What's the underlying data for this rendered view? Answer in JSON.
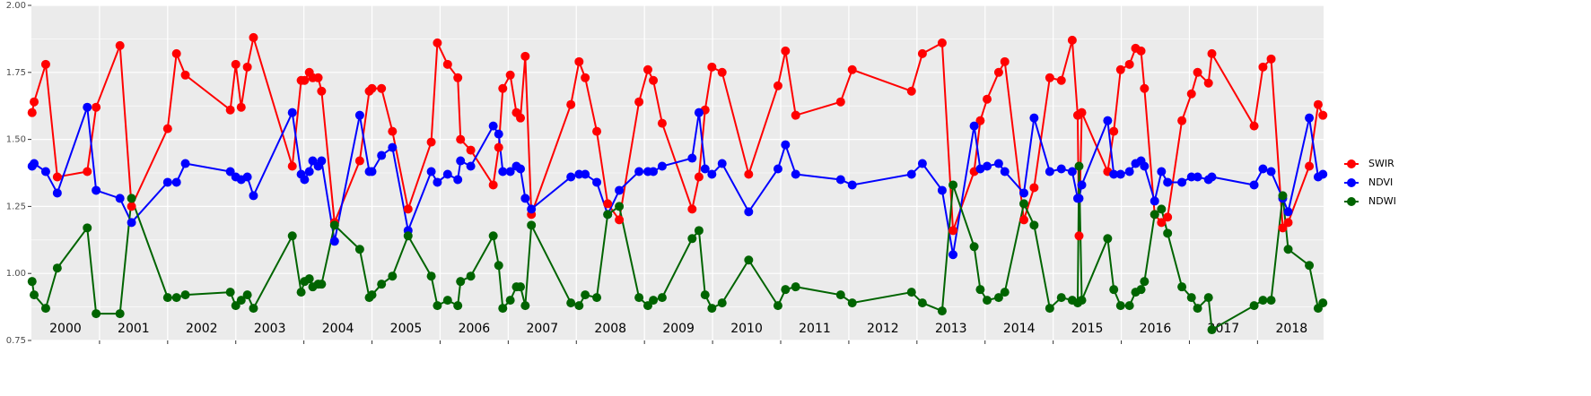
{
  "chart_data": {
    "type": "line",
    "x": [
      2000.01,
      2000.04,
      2000.21,
      2000.38,
      2000.82,
      2000.95,
      2001.3,
      2001.47,
      2002.0,
      2002.13,
      2002.26,
      2002.92,
      2003.0,
      2003.08,
      2003.17,
      2003.26,
      2003.83,
      2003.96,
      2004.01,
      2004.08,
      2004.13,
      2004.21,
      2004.26,
      2004.45,
      2004.82,
      2004.96,
      2005.0,
      2005.14,
      2005.3,
      2005.53,
      2005.87,
      2005.96,
      2006.11,
      2006.26,
      2006.3,
      2006.45,
      2006.78,
      2006.86,
      2006.92,
      2007.03,
      2007.12,
      2007.18,
      2007.25,
      2007.34,
      2007.92,
      2008.04,
      2008.13,
      2008.3,
      2008.46,
      2008.63,
      2008.92,
      2009.05,
      2009.13,
      2009.26,
      2009.7,
      2009.8,
      2009.89,
      2009.99,
      2010.14,
      2010.53,
      2010.96,
      2011.07,
      2011.22,
      2011.88,
      2012.05,
      2012.92,
      2013.08,
      2013.37,
      2013.53,
      2013.84,
      2013.93,
      2014.03,
      2014.2,
      2014.29,
      2014.57,
      2014.72,
      2014.95,
      2015.12,
      2015.28,
      2015.36,
      2015.38,
      2015.42,
      2015.8,
      2015.89,
      2015.99,
      2016.12,
      2016.21,
      2016.29,
      2016.34,
      2016.49,
      2016.59,
      2016.68,
      2016.89,
      2017.03,
      2017.12,
      2017.28,
      2017.33,
      2017.95,
      2018.08,
      2018.2,
      2018.37,
      2018.45,
      2018.76,
      2018.89,
      2018.96
    ],
    "series": [
      {
        "name": "SWIR",
        "color": "#ff0000",
        "values": [
          1.6,
          1.64,
          1.78,
          1.36,
          1.38,
          1.62,
          1.85,
          1.25,
          1.54,
          1.82,
          1.74,
          1.61,
          1.78,
          1.62,
          1.77,
          1.88,
          1.4,
          1.72,
          1.72,
          1.75,
          1.73,
          1.73,
          1.68,
          1.19,
          1.42,
          1.68,
          1.69,
          1.69,
          1.53,
          1.24,
          1.49,
          1.86,
          1.78,
          1.73,
          1.5,
          1.46,
          1.33,
          1.47,
          1.69,
          1.74,
          1.6,
          1.58,
          1.81,
          1.22,
          1.63,
          1.79,
          1.73,
          1.53,
          1.26,
          1.2,
          1.64,
          1.76,
          1.72,
          1.56,
          1.24,
          1.36,
          1.61,
          1.77,
          1.75,
          1.37,
          1.7,
          1.83,
          1.59,
          1.64,
          1.76,
          1.68,
          1.82,
          1.86,
          1.16,
          1.38,
          1.57,
          1.65,
          1.75,
          1.79,
          1.2,
          1.32,
          1.73,
          1.72,
          1.87,
          1.59,
          1.14,
          1.6,
          1.38,
          1.53,
          1.76,
          1.78,
          1.84,
          1.83,
          1.69,
          1.22,
          1.19,
          1.21,
          1.57,
          1.67,
          1.75,
          1.71,
          1.82,
          1.55,
          1.77,
          1.8,
          1.17,
          1.19,
          1.4,
          1.63,
          1.59
        ]
      },
      {
        "name": "NDVI",
        "color": "#0000ff",
        "values": [
          1.4,
          1.41,
          1.38,
          1.3,
          1.62,
          1.31,
          1.28,
          1.19,
          1.34,
          1.34,
          1.41,
          1.38,
          1.36,
          1.35,
          1.36,
          1.29,
          1.6,
          1.37,
          1.35,
          1.38,
          1.42,
          1.4,
          1.42,
          1.12,
          1.59,
          1.38,
          1.38,
          1.44,
          1.47,
          1.16,
          1.38,
          1.34,
          1.37,
          1.35,
          1.42,
          1.4,
          1.55,
          1.52,
          1.38,
          1.38,
          1.4,
          1.39,
          1.28,
          1.24,
          1.36,
          1.37,
          1.37,
          1.34,
          1.22,
          1.31,
          1.38,
          1.38,
          1.38,
          1.4,
          1.43,
          1.6,
          1.39,
          1.37,
          1.41,
          1.23,
          1.39,
          1.48,
          1.37,
          1.35,
          1.33,
          1.37,
          1.41,
          1.31,
          1.07,
          1.55,
          1.39,
          1.4,
          1.41,
          1.38,
          1.3,
          1.58,
          1.38,
          1.39,
          1.38,
          1.28,
          1.28,
          1.33,
          1.57,
          1.37,
          1.37,
          1.38,
          1.41,
          1.42,
          1.4,
          1.27,
          1.38,
          1.34,
          1.34,
          1.36,
          1.36,
          1.35,
          1.36,
          1.33,
          1.39,
          1.38,
          1.28,
          1.23,
          1.58,
          1.36,
          1.37
        ]
      },
      {
        "name": "NDWI",
        "color": "#006400",
        "values": [
          0.97,
          0.92,
          0.87,
          1.02,
          1.17,
          0.85,
          0.85,
          1.28,
          0.91,
          0.91,
          0.92,
          0.93,
          0.88,
          0.9,
          0.92,
          0.87,
          1.14,
          0.93,
          0.97,
          0.98,
          0.95,
          0.96,
          0.96,
          1.18,
          1.09,
          0.91,
          0.92,
          0.96,
          0.99,
          1.14,
          0.99,
          0.88,
          0.9,
          0.88,
          0.97,
          0.99,
          1.14,
          1.03,
          0.87,
          0.9,
          0.95,
          0.95,
          0.88,
          1.18,
          0.89,
          0.88,
          0.92,
          0.91,
          1.22,
          1.25,
          0.91,
          0.88,
          0.9,
          0.91,
          1.13,
          1.16,
          0.92,
          0.87,
          0.89,
          1.05,
          0.88,
          0.94,
          0.95,
          0.92,
          0.89,
          0.93,
          0.89,
          0.86,
          1.33,
          1.1,
          0.94,
          0.9,
          0.91,
          0.93,
          1.26,
          1.18,
          0.87,
          0.91,
          0.9,
          0.89,
          1.4,
          0.9,
          1.13,
          0.94,
          0.88,
          0.88,
          0.93,
          0.94,
          0.97,
          1.22,
          1.24,
          1.15,
          0.95,
          0.91,
          0.87,
          0.91,
          0.79,
          0.88,
          0.9,
          0.9,
          1.29,
          1.09,
          1.03,
          0.87,
          0.89
        ]
      }
    ],
    "xlim": [
      2000,
      2018.97
    ],
    "xticks": [
      {
        "value": 2000.5,
        "label": "2000"
      },
      {
        "value": 2001.5,
        "label": "2001"
      },
      {
        "value": 2002.5,
        "label": "2002"
      },
      {
        "value": 2003.5,
        "label": "2003"
      },
      {
        "value": 2004.5,
        "label": "2004"
      },
      {
        "value": 2005.5,
        "label": "2005"
      },
      {
        "value": 2006.5,
        "label": "2006"
      },
      {
        "value": 2007.5,
        "label": "2007"
      },
      {
        "value": 2008.5,
        "label": "2008"
      },
      {
        "value": 2009.5,
        "label": "2009"
      },
      {
        "value": 2010.5,
        "label": "2010"
      },
      {
        "value": 2011.5,
        "label": "2011"
      },
      {
        "value": 2012.5,
        "label": "2012"
      },
      {
        "value": 2013.5,
        "label": "2013"
      },
      {
        "value": 2014.5,
        "label": "2014"
      },
      {
        "value": 2015.5,
        "label": "2015"
      },
      {
        "value": 2016.5,
        "label": "2016"
      },
      {
        "value": 2017.5,
        "label": "2017"
      },
      {
        "value": 2018.5,
        "label": "2018"
      }
    ],
    "year_lines": [
      2001,
      2002,
      2003,
      2004,
      2005,
      2006,
      2007,
      2008,
      2009,
      2010,
      2011,
      2012,
      2013,
      2014,
      2015,
      2016,
      2017,
      2018
    ],
    "ylim": [
      0.75,
      2.0
    ],
    "yticks": [
      {
        "value": 0.75,
        "label": "0.75"
      },
      {
        "value": 1.0,
        "label": "1.00"
      },
      {
        "value": 1.25,
        "label": "1.25"
      },
      {
        "value": 1.5,
        "label": "1.50"
      },
      {
        "value": 1.75,
        "label": "1.75"
      },
      {
        "value": 2.0,
        "label": "2.00"
      }
    ],
    "yminor": [
      0.875,
      1.125,
      1.375,
      1.625,
      1.875
    ],
    "grid": true,
    "legend": "right"
  }
}
